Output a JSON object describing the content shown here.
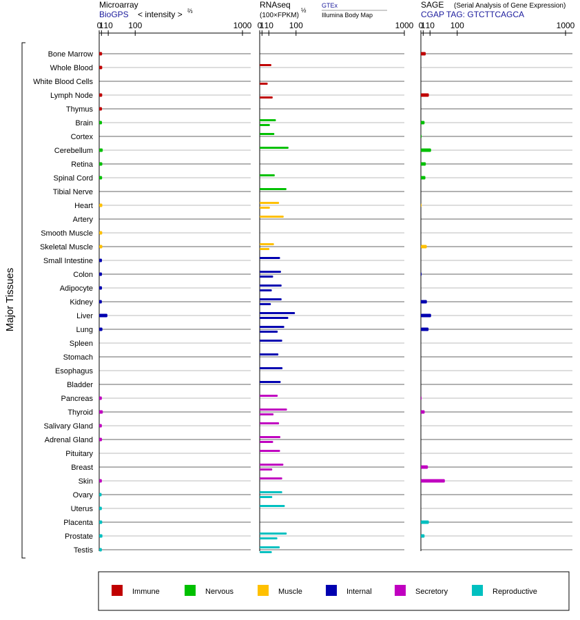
{
  "chart_data": {
    "type": "bar",
    "y_axis_label": "Major Tissues",
    "tick_labels": [
      "0",
      "1",
      "10",
      "100",
      "1000"
    ],
    "categories": [
      "Bone Marrow",
      "Whole Blood",
      "White Blood Cells",
      "Lymph Node",
      "Thymus",
      "Brain",
      "Cortex",
      "Cerebellum",
      "Retina",
      "Spinal Cord",
      "Tibial Nerve",
      "Heart",
      "Artery",
      "Smooth Muscle",
      "Skeletal Muscle",
      "Small Intestine",
      "Colon",
      "Adipocyte",
      "Kidney",
      "Liver",
      "Lung",
      "Spleen",
      "Stomach",
      "Esophagus",
      "Bladder",
      "Pancreas",
      "Thyroid",
      "Salivary Gland",
      "Adrenal Gland",
      "Pituitary",
      "Breast",
      "Skin",
      "Ovary",
      "Uterus",
      "Placenta",
      "Prostate",
      "Testis"
    ],
    "groups": [
      "Immune",
      "Immune",
      "Immune",
      "Immune",
      "Immune",
      "Nervous",
      "Nervous",
      "Nervous",
      "Nervous",
      "Nervous",
      "Nervous",
      "Muscle",
      "Muscle",
      "Muscle",
      "Muscle",
      "Internal",
      "Internal",
      "Internal",
      "Internal",
      "Internal",
      "Internal",
      "Internal",
      "Internal",
      "Internal",
      "Internal",
      "Secretory",
      "Secretory",
      "Secretory",
      "Secretory",
      "Secretory",
      "Secretory",
      "Secretory",
      "Reproductive",
      "Reproductive",
      "Reproductive",
      "Reproductive",
      "Reproductive"
    ],
    "legend": [
      {
        "name": "Immune",
        "color": "#c00000"
      },
      {
        "name": "Nervous",
        "color": "#00c000"
      },
      {
        "name": "Muscle",
        "color": "#ffc000"
      },
      {
        "name": "Internal",
        "color": "#0000b0"
      },
      {
        "name": "Secretory",
        "color": "#c000c0"
      },
      {
        "name": "Reproductive",
        "color": "#00c0c0"
      }
    ],
    "panels": [
      {
        "id": "microarray",
        "title": "Microarray",
        "subtitle_left": "BioGPS",
        "subtitle_right": "< intensity >",
        "subtitle_exp": "⅔",
        "bars_per_row": 1,
        "values": [
          1.5,
          1.6,
          null,
          1.6,
          1.4,
          1.4,
          null,
          2.1,
          1.7,
          1.5,
          null,
          1.7,
          null,
          1.6,
          1.7,
          1.4,
          1.4,
          1.4,
          1.3,
          8.5,
          1.8,
          null,
          null,
          null,
          null,
          1.3,
          2.2,
          1.3,
          1.4,
          null,
          null,
          1.3,
          1.1,
          1.3,
          1.6,
          1.8,
          1.3
        ]
      },
      {
        "id": "rnaseq",
        "title": "RNAseq",
        "subtitle_left": "(100×FPKM)",
        "subtitle_exp": "½",
        "source_top": "GTEx",
        "source_bottom": "Illumina Body Map",
        "bars_per_row": 2,
        "values": [
          [
            null,
            null
          ],
          [
            15,
            null
          ],
          [
            null,
            8
          ],
          [
            null,
            18
          ],
          [
            null,
            null
          ],
          [
            26,
            12
          ],
          [
            22,
            null
          ],
          [
            68,
            null
          ],
          [
            null,
            null
          ],
          [
            23,
            null
          ],
          [
            60,
            null
          ],
          [
            35,
            12
          ],
          [
            50,
            null
          ],
          [
            null,
            null
          ],
          [
            21,
            11
          ],
          [
            38,
            null
          ],
          [
            41,
            19
          ],
          [
            43,
            16
          ],
          [
            43,
            14
          ],
          [
            95,
            67
          ],
          [
            52,
            31
          ],
          [
            45,
            null
          ],
          [
            33,
            null
          ],
          [
            46,
            null
          ],
          [
            40,
            null
          ],
          [
            31,
            null
          ],
          [
            62,
            20
          ],
          [
            35,
            null
          ],
          [
            39,
            19
          ],
          [
            38,
            null
          ],
          [
            49,
            17
          ],
          [
            45,
            null
          ],
          [
            45,
            17
          ],
          [
            54,
            null
          ],
          [
            null,
            null
          ],
          [
            61,
            30
          ],
          [
            37,
            16
          ]
        ]
      },
      {
        "id": "sage",
        "title": "SAGE",
        "subtitle_note": "(Serial Analysis of Gene Expression)",
        "subtitle_left": "CGAP TAG: GTCTTCAGCA",
        "bars_per_row": 1,
        "values": [
          3.5,
          null,
          null,
          8,
          null,
          2.2,
          0.02,
          12,
          3.6,
          3.1,
          null,
          0.02,
          null,
          null,
          4.8,
          null,
          0.05,
          null,
          5,
          12,
          7.5,
          null,
          null,
          null,
          null,
          0.05,
          2.3,
          null,
          null,
          null,
          6.5,
          50,
          null,
          null,
          8,
          2.2,
          null
        ]
      }
    ]
  }
}
